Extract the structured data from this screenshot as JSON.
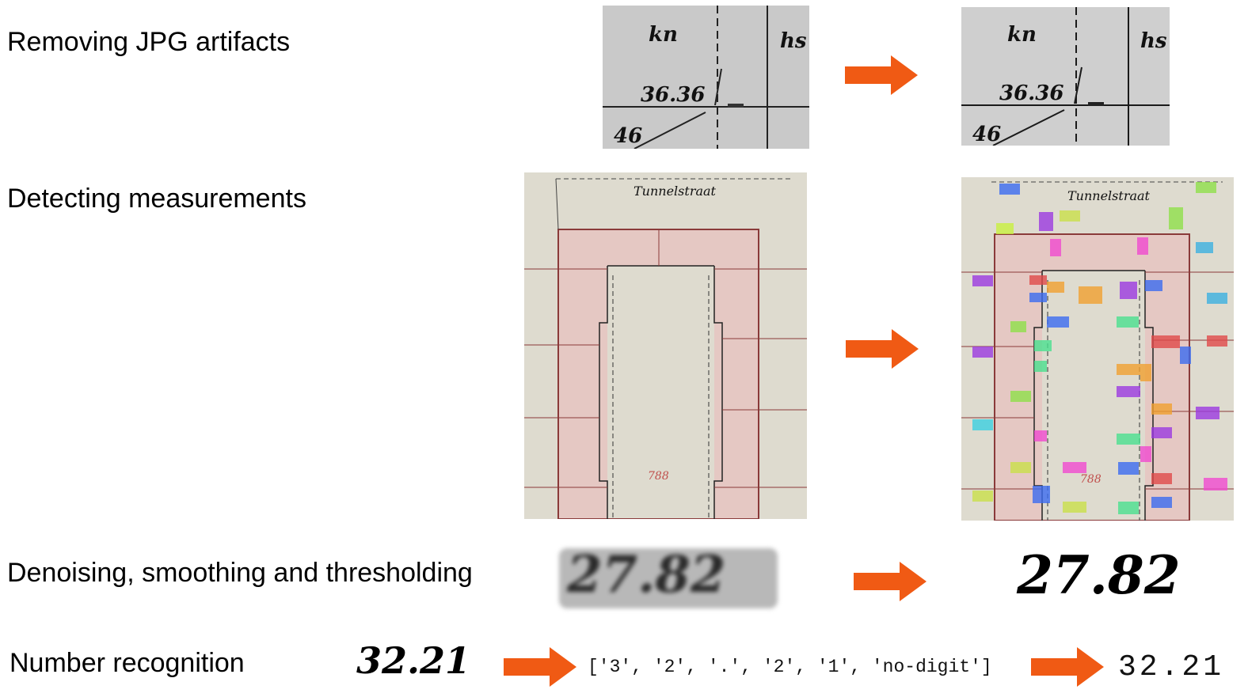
{
  "steps": [
    {
      "label": "Removing JPG artifacts"
    },
    {
      "label": "Detecting measurements"
    },
    {
      "label": "Denoising, smoothing and thresholding"
    },
    {
      "label": "Number recognition"
    }
  ],
  "colors": {
    "arrow": "#f05a14",
    "accent_red": "#c0504d"
  },
  "jpg_example": {
    "top_left": "kn",
    "top_right": "hs",
    "value": "36.36",
    "bottom": "46"
  },
  "plan_example": {
    "header": "Tunnelstraat",
    "parcel": "788"
  },
  "denoise_example": {
    "value": "27.82"
  },
  "recognition": {
    "input": "32.21",
    "tokens": "['3', '2', '.', '2', '1', 'no-digit']",
    "output": "32.21"
  }
}
